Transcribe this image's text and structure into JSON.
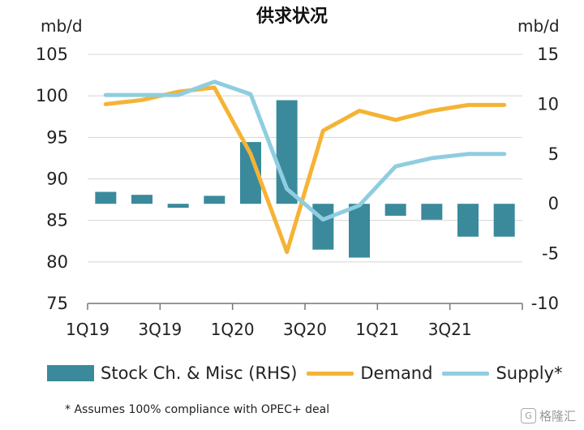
{
  "chart_data": {
    "type": "bar+line",
    "title": "供求状况",
    "ylabel_left": "mb/d",
    "ylabel_right": "mb/d",
    "ylim_left": [
      75,
      105
    ],
    "ylim_right": [
      -10,
      15
    ],
    "yticks_left": [
      75,
      80,
      85,
      90,
      95,
      100,
      105
    ],
    "yticks_right": [
      -10,
      -5,
      0,
      5,
      10,
      15
    ],
    "grid": "horizontal",
    "categories": [
      "1Q19",
      "2Q19",
      "3Q19",
      "4Q19",
      "1Q20",
      "2Q20",
      "3Q20",
      "4Q20",
      "1Q21",
      "2Q21",
      "3Q21",
      "4Q21"
    ],
    "x_tick_labels": [
      "1Q19",
      "3Q19",
      "1Q20",
      "3Q20",
      "1Q21",
      "3Q21"
    ],
    "series": [
      {
        "name": "Stock Ch. & Misc (RHS)",
        "type": "bar",
        "axis": "right",
        "color": "#3a8a9c",
        "values": [
          1.2,
          0.9,
          -0.4,
          0.8,
          6.2,
          10.4,
          -4.6,
          -5.4,
          -1.2,
          -1.6,
          -3.3,
          -3.3
        ]
      },
      {
        "name": "Demand",
        "type": "line",
        "axis": "left",
        "color": "#f5b335",
        "values": [
          99.0,
          99.5,
          100.5,
          101.0,
          93.0,
          81.2,
          95.8,
          98.2,
          97.1,
          98.2,
          98.9,
          98.9
        ]
      },
      {
        "name": "Supply*",
        "type": "line",
        "axis": "left",
        "color": "#8fcde0",
        "values": [
          100.1,
          100.1,
          100.1,
          101.7,
          100.2,
          88.8,
          85.1,
          86.8,
          91.5,
          92.5,
          93.0,
          93.0
        ]
      }
    ],
    "legend_position": "bottom",
    "footnote": "* Assumes 100% compliance with OPEC+ deal"
  },
  "watermark": {
    "logo": "G",
    "text": "格隆汇"
  }
}
